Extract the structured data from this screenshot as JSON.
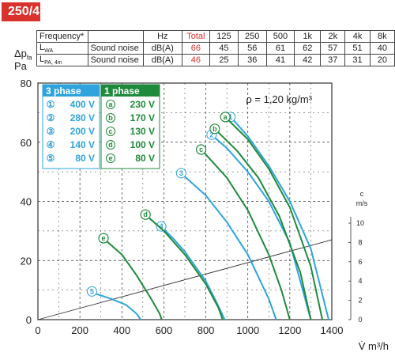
{
  "header": {
    "model": "250/4"
  },
  "side_label": {
    "dp": "Δp",
    "dp_sub": "fa",
    "pa": "Pa"
  },
  "noise_table": {
    "columns": [
      "Frequency*",
      "",
      "Hz",
      "Total",
      "125",
      "250",
      "500",
      "1k",
      "2k",
      "4k",
      "8k"
    ],
    "rows": [
      {
        "symbol": "L",
        "symbol_sub": "WA",
        "label": "Sound noise",
        "unit": "dB(A)",
        "total": "66",
        "values": [
          "45",
          "56",
          "61",
          "62",
          "57",
          "51",
          "40"
        ]
      },
      {
        "symbol": "L",
        "symbol_sub": "PA, 4m",
        "label": "Sound noise",
        "unit": "dB(A)",
        "total": "46",
        "values": [
          "25",
          "36",
          "41",
          "42",
          "37",
          "31",
          "20"
        ]
      }
    ]
  },
  "colors": {
    "blue": "#2ea3dc",
    "green": "#1f8a3b",
    "red": "#d9312b",
    "grid": "#333333",
    "system": "#333333"
  },
  "chart_data": {
    "type": "line",
    "xlabel": "V̇ m³/h",
    "ylabel": "Δpfa Pa",
    "xlim": [
      0,
      1400
    ],
    "ylim": [
      0,
      80
    ],
    "x_ticks": [
      "0",
      "200",
      "400",
      "600",
      "800",
      "1000",
      "1200",
      "1400"
    ],
    "y_ticks": [
      "0",
      "20",
      "40",
      "60",
      "80"
    ],
    "right_axis": {
      "label_c": "c",
      "label_unit": "m/s",
      "ticks": [
        "0",
        "2",
        "4",
        "6",
        "8",
        "10"
      ]
    },
    "density_note": "ρ = 1,20 kg/m³",
    "legend": {
      "three_phase_title": "3 phase",
      "one_phase_title": "1 phase",
      "three_phase": [
        {
          "mark": "①",
          "voltage": "400 V"
        },
        {
          "mark": "②",
          "voltage": "280 V"
        },
        {
          "mark": "③",
          "voltage": "200 V"
        },
        {
          "mark": "④",
          "voltage": "140 V"
        },
        {
          "mark": "⑤",
          "voltage": "80 V"
        }
      ],
      "one_phase": [
        {
          "mark": "a",
          "voltage": "230 V"
        },
        {
          "mark": "b",
          "voltage": "170 V"
        },
        {
          "mark": "c",
          "voltage": "130 V"
        },
        {
          "mark": "d",
          "voltage": "100 V"
        },
        {
          "mark": "e",
          "voltage": "80 V"
        }
      ]
    },
    "series": [
      {
        "name": "①",
        "phase": "3",
        "label": "1",
        "x": [
          925,
          1000,
          1100,
          1200,
          1300,
          1385
        ],
        "y": [
          68,
          62,
          52,
          40,
          24,
          0
        ]
      },
      {
        "name": "②",
        "phase": "3",
        "label": "2",
        "x": [
          835,
          900,
          1000,
          1100,
          1200,
          1300
        ],
        "y": [
          62,
          58,
          50,
          40,
          26,
          0
        ]
      },
      {
        "name": "③",
        "phase": "3",
        "label": "3",
        "x": [
          690,
          800,
          900,
          1000,
          1100,
          1135
        ],
        "y": [
          49,
          42,
          33,
          22,
          7,
          0
        ]
      },
      {
        "name": "④",
        "phase": "3",
        "label": "4",
        "x": [
          595,
          650,
          700,
          750,
          800,
          850,
          890
        ],
        "y": [
          31,
          27,
          23,
          18,
          13,
          6,
          0
        ]
      },
      {
        "name": "⑤",
        "phase": "3",
        "label": "5",
        "x": [
          265,
          350,
          420,
          470,
          490
        ],
        "y": [
          9,
          7,
          5,
          2,
          0
        ]
      },
      {
        "name": "a",
        "phase": "1",
        "label": "a",
        "x": [
          900,
          1000,
          1100,
          1200,
          1300,
          1355
        ],
        "y": [
          68,
          61,
          51,
          38,
          18,
          0
        ]
      },
      {
        "name": "b",
        "phase": "1",
        "label": "b",
        "x": [
          850,
          950,
          1050,
          1150,
          1250,
          1300
        ],
        "y": [
          64,
          57,
          48,
          35,
          16,
          0
        ]
      },
      {
        "name": "c",
        "phase": "1",
        "label": "c",
        "x": [
          785,
          900,
          1000,
          1100,
          1160,
          1200
        ],
        "y": [
          57,
          48,
          37,
          22,
          10,
          0
        ]
      },
      {
        "name": "d",
        "phase": "1",
        "label": "d",
        "x": [
          520,
          600,
          700,
          800,
          860,
          880
        ],
        "y": [
          35,
          30,
          22,
          12,
          4,
          0
        ]
      },
      {
        "name": "e",
        "phase": "1",
        "label": "e",
        "x": [
          320,
          400,
          470,
          540,
          580,
          590
        ],
        "y": [
          27,
          22,
          15,
          7,
          2,
          0
        ]
      }
    ],
    "system_curve": {
      "x": [
        0,
        1400
      ],
      "y": [
        0,
        27
      ]
    }
  }
}
